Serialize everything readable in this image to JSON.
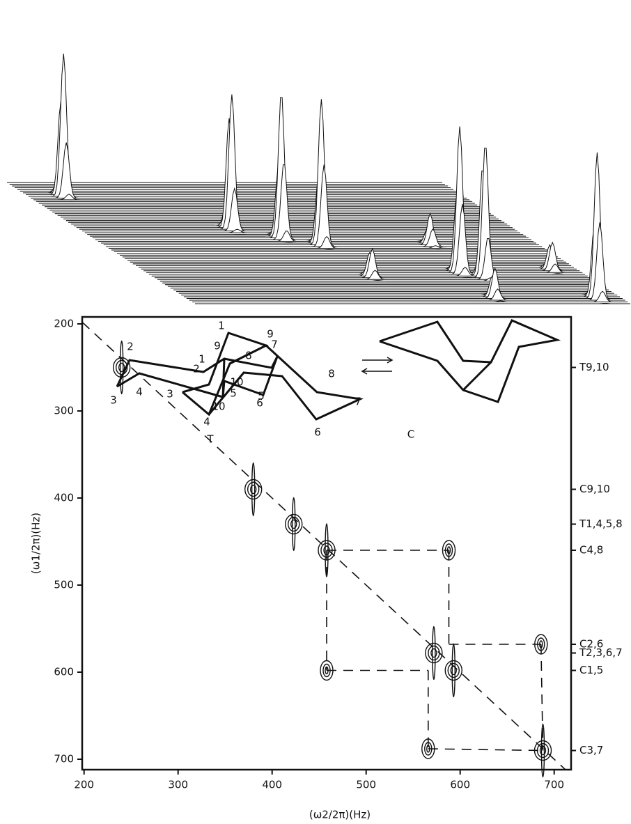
{
  "chart_data": {
    "type": "contour",
    "x_label": "(ω2/2π)(Hz)",
    "y_label": "(ω1/2π)(Hz)",
    "x": [
      240,
      380,
      423,
      458,
      572,
      593,
      588,
      458,
      686,
      566,
      688
    ],
    "values": [
      250,
      390,
      430,
      460,
      578,
      598,
      460,
      598,
      568,
      688,
      690
    ],
    "xlim": [
      198,
      718
    ],
    "ylim": [
      192,
      712
    ],
    "y_inverted": true,
    "xticks": [
      200,
      300,
      400,
      500,
      600,
      700
    ],
    "yticks": [
      200,
      300,
      400,
      500,
      600,
      700
    ],
    "y2lim": [
      192,
      712
    ],
    "y2ticks": [
      {
        "value": 250,
        "label": "T9,10"
      },
      {
        "value": 390,
        "label": "C9,10"
      },
      {
        "value": 430,
        "label": "T1,4,5,8"
      },
      {
        "value": 460,
        "label": "C4,8"
      },
      {
        "value": 568,
        "label": "C2,6"
      },
      {
        "value": 578,
        "label": "T2,3,6,7"
      },
      {
        "value": 598,
        "label": "C1,5"
      },
      {
        "value": 690,
        "label": "C3,7"
      }
    ],
    "c_labels": [
      "1",
      "9",
      "2",
      "8",
      "3",
      "10",
      "5",
      "7",
      "4",
      "6",
      "C"
    ],
    "t_labels": [
      "2",
      "9",
      "1",
      "8",
      "7",
      "3",
      "4",
      "10",
      "5",
      "6",
      "T"
    ],
    "color": "#111111"
  }
}
